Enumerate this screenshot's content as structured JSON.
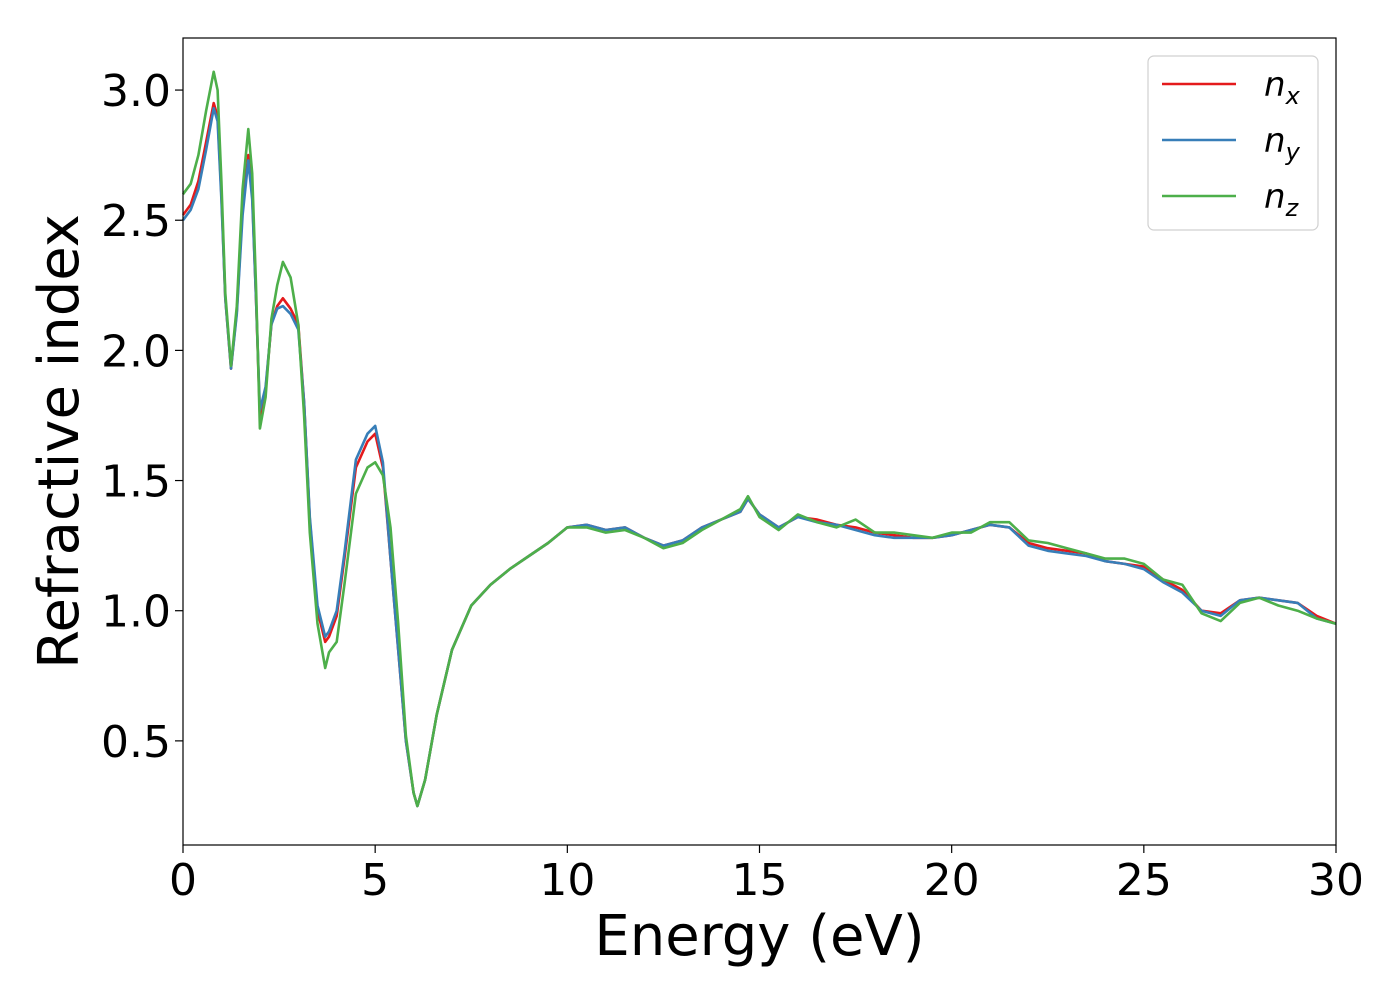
{
  "chart_data": {
    "type": "line",
    "title": "",
    "xlabel": "Energy (eV)",
    "ylabel": "Refractive index",
    "xlim": [
      0,
      30
    ],
    "ylim": [
      0.1,
      3.2
    ],
    "xticks": [
      0,
      5,
      10,
      15,
      20,
      25,
      30
    ],
    "xtick_labels": [
      "0",
      "5",
      "10",
      "15",
      "20",
      "25",
      "30"
    ],
    "yticks": [
      0.5,
      1.0,
      1.5,
      2.0,
      2.5,
      3.0
    ],
    "ytick_labels": [
      "0.5",
      "1.0",
      "1.5",
      "2.0",
      "2.5",
      "3.0"
    ],
    "grid": false,
    "legend_position": "top-right",
    "series": [
      {
        "name": "n_x",
        "label_base": "n",
        "label_sub": "x",
        "color": "#e41a1c",
        "x": [
          0,
          0.2,
          0.4,
          0.6,
          0.8,
          0.9,
          1.0,
          1.1,
          1.25,
          1.4,
          1.55,
          1.7,
          1.8,
          1.9,
          2.0,
          2.15,
          2.3,
          2.45,
          2.6,
          2.8,
          3.0,
          3.15,
          3.3,
          3.5,
          3.7,
          3.8,
          4.0,
          4.2,
          4.5,
          4.8,
          5.0,
          5.2,
          5.4,
          5.6,
          5.8,
          6.0,
          6.1,
          6.3,
          6.6,
          7.0,
          7.5,
          8.0,
          8.5,
          9.0,
          9.5,
          10.0,
          10.5,
          11.0,
          11.5,
          12.0,
          12.5,
          13.0,
          13.5,
          14.0,
          14.5,
          14.7,
          15.0,
          15.5,
          16.0,
          16.5,
          17.0,
          17.5,
          18.0,
          18.5,
          19.0,
          19.5,
          20.0,
          20.5,
          21.0,
          21.5,
          22.0,
          22.5,
          23.0,
          23.5,
          24.0,
          24.5,
          25.0,
          25.5,
          26.0,
          26.5,
          27.0,
          27.5,
          28.0,
          28.5,
          29.0,
          29.5,
          30.0
        ],
        "y": [
          2.52,
          2.56,
          2.65,
          2.8,
          2.95,
          2.9,
          2.6,
          2.2,
          1.93,
          2.15,
          2.55,
          2.75,
          2.6,
          2.2,
          1.75,
          1.85,
          2.1,
          2.17,
          2.2,
          2.16,
          2.1,
          1.8,
          1.35,
          1.0,
          0.88,
          0.9,
          0.98,
          1.2,
          1.55,
          1.65,
          1.68,
          1.55,
          1.2,
          0.85,
          0.5,
          0.3,
          0.25,
          0.35,
          0.6,
          0.85,
          1.02,
          1.1,
          1.16,
          1.21,
          1.26,
          1.32,
          1.33,
          1.31,
          1.32,
          1.28,
          1.25,
          1.27,
          1.32,
          1.35,
          1.38,
          1.43,
          1.37,
          1.32,
          1.36,
          1.35,
          1.33,
          1.32,
          1.3,
          1.29,
          1.28,
          1.28,
          1.29,
          1.31,
          1.33,
          1.32,
          1.26,
          1.24,
          1.23,
          1.22,
          1.19,
          1.18,
          1.17,
          1.12,
          1.08,
          1.0,
          0.99,
          1.04,
          1.05,
          1.04,
          1.03,
          0.98,
          0.95
        ]
      },
      {
        "name": "n_y",
        "label_base": "n",
        "label_sub": "y",
        "color": "#377eb8",
        "x": [
          0,
          0.2,
          0.4,
          0.6,
          0.8,
          0.9,
          1.0,
          1.1,
          1.25,
          1.4,
          1.55,
          1.7,
          1.8,
          1.9,
          2.0,
          2.15,
          2.3,
          2.45,
          2.6,
          2.8,
          3.0,
          3.15,
          3.3,
          3.5,
          3.7,
          3.8,
          4.0,
          4.2,
          4.5,
          4.8,
          5.0,
          5.2,
          5.4,
          5.6,
          5.8,
          6.0,
          6.1,
          6.3,
          6.6,
          7.0,
          7.5,
          8.0,
          8.5,
          9.0,
          9.5,
          10.0,
          10.5,
          11.0,
          11.5,
          12.0,
          12.5,
          13.0,
          13.5,
          14.0,
          14.5,
          14.7,
          15.0,
          15.5,
          16.0,
          16.5,
          17.0,
          17.5,
          18.0,
          18.5,
          19.0,
          19.5,
          20.0,
          20.5,
          21.0,
          21.5,
          22.0,
          22.5,
          23.0,
          23.5,
          24.0,
          24.5,
          25.0,
          25.5,
          26.0,
          26.5,
          27.0,
          27.5,
          28.0,
          28.5,
          29.0,
          29.5,
          30.0
        ],
        "y": [
          2.5,
          2.54,
          2.62,
          2.77,
          2.93,
          2.88,
          2.58,
          2.2,
          1.93,
          2.14,
          2.52,
          2.73,
          2.58,
          2.2,
          1.77,
          1.86,
          2.1,
          2.16,
          2.17,
          2.14,
          2.08,
          1.8,
          1.36,
          1.02,
          0.9,
          0.92,
          1.0,
          1.22,
          1.58,
          1.68,
          1.71,
          1.57,
          1.2,
          0.85,
          0.5,
          0.3,
          0.25,
          0.35,
          0.6,
          0.85,
          1.02,
          1.1,
          1.16,
          1.21,
          1.26,
          1.32,
          1.33,
          1.31,
          1.32,
          1.28,
          1.25,
          1.27,
          1.32,
          1.35,
          1.38,
          1.43,
          1.37,
          1.32,
          1.36,
          1.34,
          1.33,
          1.31,
          1.29,
          1.28,
          1.28,
          1.28,
          1.29,
          1.31,
          1.33,
          1.32,
          1.25,
          1.23,
          1.22,
          1.21,
          1.19,
          1.18,
          1.16,
          1.11,
          1.07,
          1.0,
          0.98,
          1.04,
          1.05,
          1.04,
          1.03,
          0.97,
          0.95
        ]
      },
      {
        "name": "n_z",
        "label_base": "n",
        "label_sub": "z",
        "color": "#4daf4a",
        "x": [
          0,
          0.2,
          0.4,
          0.6,
          0.8,
          0.9,
          1.0,
          1.1,
          1.25,
          1.4,
          1.55,
          1.7,
          1.8,
          1.9,
          2.0,
          2.15,
          2.3,
          2.45,
          2.6,
          2.8,
          3.0,
          3.15,
          3.3,
          3.5,
          3.7,
          3.8,
          4.0,
          4.2,
          4.5,
          4.8,
          5.0,
          5.2,
          5.4,
          5.6,
          5.8,
          6.0,
          6.1,
          6.3,
          6.6,
          7.0,
          7.5,
          8.0,
          8.5,
          9.0,
          9.5,
          10.0,
          10.5,
          11.0,
          11.5,
          12.0,
          12.5,
          13.0,
          13.5,
          14.0,
          14.5,
          14.7,
          15.0,
          15.5,
          16.0,
          16.5,
          17.0,
          17.5,
          18.0,
          18.5,
          19.0,
          19.5,
          20.0,
          20.5,
          21.0,
          21.5,
          22.0,
          22.5,
          23.0,
          23.5,
          24.0,
          24.5,
          25.0,
          25.5,
          26.0,
          26.5,
          27.0,
          27.5,
          28.0,
          28.5,
          29.0,
          29.5,
          30.0
        ],
        "y": [
          2.6,
          2.64,
          2.75,
          2.92,
          3.07,
          3.0,
          2.65,
          2.22,
          1.94,
          2.17,
          2.62,
          2.85,
          2.68,
          2.25,
          1.7,
          1.82,
          2.12,
          2.25,
          2.34,
          2.28,
          2.1,
          1.75,
          1.3,
          0.95,
          0.78,
          0.84,
          0.88,
          1.1,
          1.45,
          1.55,
          1.57,
          1.52,
          1.32,
          0.95,
          0.52,
          0.3,
          0.25,
          0.35,
          0.6,
          0.85,
          1.02,
          1.1,
          1.16,
          1.21,
          1.26,
          1.32,
          1.32,
          1.3,
          1.31,
          1.28,
          1.24,
          1.26,
          1.31,
          1.35,
          1.39,
          1.44,
          1.36,
          1.31,
          1.37,
          1.34,
          1.32,
          1.35,
          1.3,
          1.3,
          1.29,
          1.28,
          1.3,
          1.3,
          1.34,
          1.34,
          1.27,
          1.26,
          1.24,
          1.22,
          1.2,
          1.2,
          1.18,
          1.12,
          1.1,
          0.99,
          0.96,
          1.03,
          1.05,
          1.02,
          1.0,
          0.97,
          0.95
        ]
      }
    ]
  }
}
